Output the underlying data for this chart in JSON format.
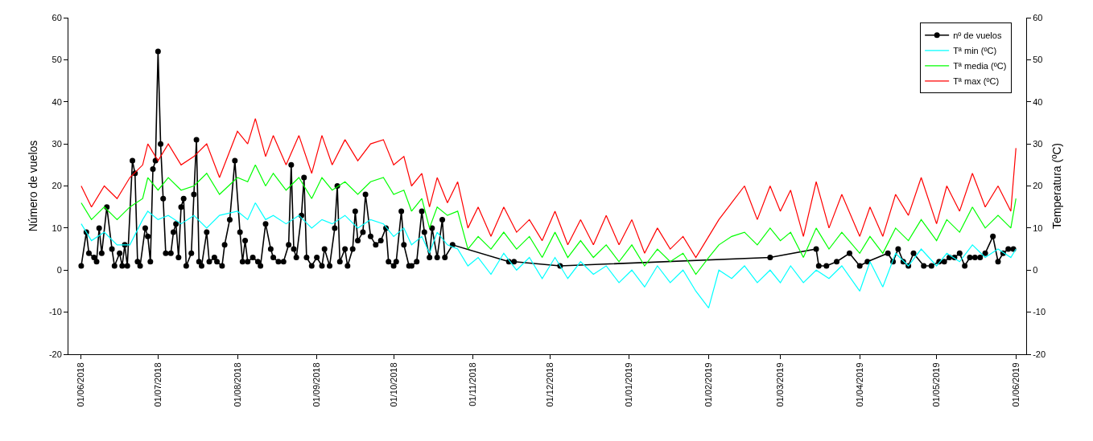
{
  "chart_data": {
    "type": "line",
    "ylabel": "Número de vuelos",
    "y2label": "Temperatura (ºC)",
    "xlim": [
      "2018-05-27",
      "2019-06-05"
    ],
    "xticks": [
      {
        "value": "2018-06-01",
        "label": "01/06/2018"
      },
      {
        "value": "2018-07-01",
        "label": "01/07/2018"
      },
      {
        "value": "2018-08-01",
        "label": "01/08/2018"
      },
      {
        "value": "2018-09-01",
        "label": "01/09/2018"
      },
      {
        "value": "2018-10-01",
        "label": "01/10/2018"
      },
      {
        "value": "2018-11-01",
        "label": "01/11/2018"
      },
      {
        "value": "2018-12-01",
        "label": "01/12/2018"
      },
      {
        "value": "2019-01-01",
        "label": "01/01/2019"
      },
      {
        "value": "2019-02-01",
        "label": "01/02/2019"
      },
      {
        "value": "2019-03-01",
        "label": "01/03/2019"
      },
      {
        "value": "2019-04-01",
        "label": "01/04/2019"
      },
      {
        "value": "2019-05-01",
        "label": "01/05/2019"
      },
      {
        "value": "2019-06-01",
        "label": "01/06/2019"
      }
    ],
    "ylim": [
      -20,
      60
    ],
    "yticks": [
      -20,
      -10,
      0,
      10,
      20,
      30,
      40,
      50,
      60
    ],
    "y2lim": [
      -20,
      60
    ],
    "y2ticks": [
      -20,
      -10,
      0,
      10,
      20,
      30,
      40,
      50,
      60
    ],
    "grid": false,
    "legend": "top right",
    "line_style": "solid",
    "series": [
      {
        "name": "Tª max (ºC)",
        "color": "#ff0000",
        "axis": "y2",
        "marker": "none",
        "x": [
          "2018-06-01",
          "2018-06-05",
          "2018-06-10",
          "2018-06-15",
          "2018-06-20",
          "2018-06-25",
          "2018-06-27",
          "2018-07-01",
          "2018-07-05",
          "2018-07-10",
          "2018-07-15",
          "2018-07-20",
          "2018-07-25",
          "2018-08-01",
          "2018-08-05",
          "2018-08-08",
          "2018-08-12",
          "2018-08-15",
          "2018-08-20",
          "2018-08-25",
          "2018-08-30",
          "2018-09-03",
          "2018-09-07",
          "2018-09-12",
          "2018-09-17",
          "2018-09-22",
          "2018-09-27",
          "2018-10-01",
          "2018-10-05",
          "2018-10-08",
          "2018-10-12",
          "2018-10-15",
          "2018-10-18",
          "2018-10-22",
          "2018-10-26",
          "2018-10-30",
          "2018-11-03",
          "2018-11-08",
          "2018-11-13",
          "2018-11-18",
          "2018-11-23",
          "2018-11-28",
          "2018-12-03",
          "2018-12-08",
          "2018-12-13",
          "2018-12-18",
          "2018-12-23",
          "2018-12-28",
          "2019-01-02",
          "2019-01-07",
          "2019-01-12",
          "2019-01-17",
          "2019-01-22",
          "2019-01-27",
          "2019-02-01",
          "2019-02-05",
          "2019-02-10",
          "2019-02-15",
          "2019-02-20",
          "2019-02-25",
          "2019-03-01",
          "2019-03-05",
          "2019-03-10",
          "2019-03-15",
          "2019-03-20",
          "2019-03-25",
          "2019-04-01",
          "2019-04-05",
          "2019-04-10",
          "2019-04-15",
          "2019-04-20",
          "2019-04-25",
          "2019-05-01",
          "2019-05-05",
          "2019-05-10",
          "2019-05-15",
          "2019-05-20",
          "2019-05-25",
          "2019-05-30",
          "2019-06-01"
        ],
        "values": [
          20,
          15,
          20,
          17,
          22,
          25,
          30,
          26,
          30,
          25,
          27,
          30,
          22,
          33,
          30,
          36,
          27,
          32,
          25,
          32,
          23,
          32,
          25,
          31,
          26,
          30,
          31,
          25,
          27,
          20,
          23,
          15,
          22,
          16,
          21,
          10,
          15,
          8,
          15,
          9,
          12,
          7,
          14,
          6,
          12,
          6,
          13,
          6,
          12,
          4,
          10,
          5,
          8,
          3,
          8,
          12,
          16,
          20,
          12,
          20,
          14,
          19,
          8,
          21,
          10,
          18,
          8,
          15,
          8,
          18,
          13,
          22,
          11,
          20,
          14,
          23,
          15,
          20,
          14,
          29
        ]
      },
      {
        "name": "Tª media (ºC)",
        "color": "#00ff00",
        "axis": "y2",
        "marker": "none",
        "x": [
          "2018-06-01",
          "2018-06-05",
          "2018-06-10",
          "2018-06-15",
          "2018-06-20",
          "2018-06-25",
          "2018-06-27",
          "2018-07-01",
          "2018-07-05",
          "2018-07-10",
          "2018-07-15",
          "2018-07-20",
          "2018-07-25",
          "2018-08-01",
          "2018-08-05",
          "2018-08-08",
          "2018-08-12",
          "2018-08-15",
          "2018-08-20",
          "2018-08-25",
          "2018-08-30",
          "2018-09-03",
          "2018-09-07",
          "2018-09-12",
          "2018-09-17",
          "2018-09-22",
          "2018-09-27",
          "2018-10-01",
          "2018-10-05",
          "2018-10-08",
          "2018-10-12",
          "2018-10-15",
          "2018-10-18",
          "2018-10-22",
          "2018-10-26",
          "2018-10-30",
          "2018-11-03",
          "2018-11-08",
          "2018-11-13",
          "2018-11-18",
          "2018-11-23",
          "2018-11-28",
          "2018-12-03",
          "2018-12-08",
          "2018-12-13",
          "2018-12-18",
          "2018-12-23",
          "2018-12-28",
          "2019-01-02",
          "2019-01-07",
          "2019-01-12",
          "2019-01-17",
          "2019-01-22",
          "2019-01-27",
          "2019-02-01",
          "2019-02-05",
          "2019-02-10",
          "2019-02-15",
          "2019-02-20",
          "2019-02-25",
          "2019-03-01",
          "2019-03-05",
          "2019-03-10",
          "2019-03-15",
          "2019-03-20",
          "2019-03-25",
          "2019-04-01",
          "2019-04-05",
          "2019-04-10",
          "2019-04-15",
          "2019-04-20",
          "2019-04-25",
          "2019-05-01",
          "2019-05-05",
          "2019-05-10",
          "2019-05-15",
          "2019-05-20",
          "2019-05-25",
          "2019-05-30",
          "2019-06-01"
        ],
        "values": [
          16,
          12,
          15,
          12,
          15,
          17,
          22,
          19,
          22,
          19,
          20,
          23,
          18,
          22,
          21,
          25,
          20,
          23,
          19,
          22,
          17,
          22,
          19,
          21,
          18,
          21,
          22,
          18,
          19,
          14,
          17,
          10,
          15,
          13,
          14,
          5,
          8,
          5,
          9,
          5,
          8,
          3,
          9,
          3,
          7,
          3,
          6,
          2,
          6,
          1,
          5,
          2,
          4,
          -1,
          3,
          6,
          8,
          9,
          6,
          10,
          7,
          9,
          3,
          10,
          5,
          9,
          4,
          8,
          4,
          10,
          7,
          12,
          7,
          12,
          9,
          15,
          10,
          13,
          10,
          17
        ]
      },
      {
        "name": "Tª min (ºC)",
        "color": "#00ffff",
        "axis": "y2",
        "marker": "none",
        "x": [
          "2018-06-01",
          "2018-06-05",
          "2018-06-10",
          "2018-06-15",
          "2018-06-20",
          "2018-06-25",
          "2018-06-27",
          "2018-07-01",
          "2018-07-05",
          "2018-07-10",
          "2018-07-15",
          "2018-07-20",
          "2018-07-25",
          "2018-08-01",
          "2018-08-05",
          "2018-08-08",
          "2018-08-12",
          "2018-08-15",
          "2018-08-20",
          "2018-08-25",
          "2018-08-30",
          "2018-09-03",
          "2018-09-07",
          "2018-09-12",
          "2018-09-17",
          "2018-09-22",
          "2018-09-27",
          "2018-10-01",
          "2018-10-05",
          "2018-10-08",
          "2018-10-12",
          "2018-10-15",
          "2018-10-18",
          "2018-10-22",
          "2018-10-26",
          "2018-10-30",
          "2018-11-03",
          "2018-11-08",
          "2018-11-13",
          "2018-11-18",
          "2018-11-23",
          "2018-11-28",
          "2018-12-03",
          "2018-12-08",
          "2018-12-13",
          "2018-12-18",
          "2018-12-23",
          "2018-12-28",
          "2019-01-02",
          "2019-01-07",
          "2019-01-12",
          "2019-01-17",
          "2019-01-22",
          "2019-01-27",
          "2019-02-01",
          "2019-02-05",
          "2019-02-10",
          "2019-02-15",
          "2019-02-20",
          "2019-02-25",
          "2019-03-01",
          "2019-03-05",
          "2019-03-10",
          "2019-03-15",
          "2019-03-20",
          "2019-03-25",
          "2019-04-01",
          "2019-04-05",
          "2019-04-10",
          "2019-04-15",
          "2019-04-20",
          "2019-04-25",
          "2019-05-01",
          "2019-05-05",
          "2019-05-10",
          "2019-05-15",
          "2019-05-20",
          "2019-05-25",
          "2019-05-30",
          "2019-06-01"
        ],
        "values": [
          11,
          7,
          9,
          6,
          6,
          12,
          14,
          12,
          13,
          11,
          13,
          10,
          13,
          14,
          12,
          16,
          12,
          13,
          11,
          13,
          10,
          12,
          11,
          13,
          10,
          12,
          11,
          8,
          10,
          6,
          8,
          4,
          9,
          6,
          5,
          1,
          3,
          -1,
          4,
          0,
          3,
          -2,
          3,
          -2,
          2,
          -1,
          1,
          -3,
          0,
          -4,
          1,
          -3,
          0,
          -5,
          -9,
          0,
          -2,
          1,
          -3,
          0,
          -3,
          1,
          -3,
          0,
          -2,
          1,
          -5,
          2,
          -4,
          4,
          1,
          5,
          1,
          4,
          2,
          6,
          3,
          5,
          3,
          5
        ]
      },
      {
        "name": "nº de vuelos",
        "color": "#000000",
        "axis": "y",
        "marker": "circle",
        "x": [
          "2018-06-01",
          "2018-06-03",
          "2018-06-04",
          "2018-06-06",
          "2018-06-07",
          "2018-06-08",
          "2018-06-09",
          "2018-06-11",
          "2018-06-13",
          "2018-06-14",
          "2018-06-16",
          "2018-06-17",
          "2018-06-18",
          "2018-06-19",
          "2018-06-21",
          "2018-06-22",
          "2018-06-23",
          "2018-06-24",
          "2018-06-26",
          "2018-06-27",
          "2018-06-28",
          "2018-06-29",
          "2018-06-30",
          "2018-07-01",
          "2018-07-02",
          "2018-07-03",
          "2018-07-04",
          "2018-07-06",
          "2018-07-07",
          "2018-07-08",
          "2018-07-09",
          "2018-07-10",
          "2018-07-11",
          "2018-07-12",
          "2018-07-14",
          "2018-07-15",
          "2018-07-16",
          "2018-07-17",
          "2018-07-18",
          "2018-07-20",
          "2018-07-21",
          "2018-07-23",
          "2018-07-24",
          "2018-07-26",
          "2018-07-27",
          "2018-07-29",
          "2018-07-31",
          "2018-08-02",
          "2018-08-03",
          "2018-08-04",
          "2018-08-05",
          "2018-08-07",
          "2018-08-09",
          "2018-08-10",
          "2018-08-12",
          "2018-08-14",
          "2018-08-15",
          "2018-08-17",
          "2018-08-19",
          "2018-08-21",
          "2018-08-22",
          "2018-08-23",
          "2018-08-24",
          "2018-08-26",
          "2018-08-27",
          "2018-08-28",
          "2018-08-30",
          "2018-09-01",
          "2018-09-03",
          "2018-09-04",
          "2018-09-06",
          "2018-09-08",
          "2018-09-09",
          "2018-09-10",
          "2018-09-12",
          "2018-09-13",
          "2018-09-15",
          "2018-09-16",
          "2018-09-17",
          "2018-09-19",
          "2018-09-20",
          "2018-09-22",
          "2018-09-24",
          "2018-09-26",
          "2018-09-28",
          "2018-09-29",
          "2018-10-01",
          "2018-10-02",
          "2018-10-04",
          "2018-10-05",
          "2018-10-07",
          "2018-10-08",
          "2018-10-10",
          "2018-10-12",
          "2018-10-13",
          "2018-10-15",
          "2018-10-16",
          "2018-10-18",
          "2018-10-20",
          "2018-10-21",
          "2018-10-24",
          "2018-11-15",
          "2018-11-17",
          "2018-12-05",
          "2019-02-25",
          "2019-03-15",
          "2019-03-16",
          "2019-03-19",
          "2019-03-23",
          "2019-03-28",
          "2019-04-01",
          "2019-04-04",
          "2019-04-12",
          "2019-04-14",
          "2019-04-16",
          "2019-04-18",
          "2019-04-20",
          "2019-04-22",
          "2019-04-26",
          "2019-04-29",
          "2019-05-02",
          "2019-05-04",
          "2019-05-06",
          "2019-05-08",
          "2019-05-10",
          "2019-05-12",
          "2019-05-14",
          "2019-05-16",
          "2019-05-18",
          "2019-05-20",
          "2019-05-23",
          "2019-05-25",
          "2019-05-27",
          "2019-05-29",
          "2019-05-31"
        ],
        "values": [
          1,
          9,
          4,
          3,
          2,
          10,
          4,
          15,
          5,
          1,
          4,
          1,
          6,
          1,
          26,
          23,
          2,
          1,
          10,
          8,
          2,
          24,
          26,
          52,
          30,
          17,
          4,
          4,
          9,
          11,
          3,
          15,
          17,
          1,
          4,
          18,
          31,
          2,
          1,
          9,
          2,
          3,
          2,
          1,
          6,
          12,
          26,
          9,
          2,
          7,
          2,
          3,
          2,
          1,
          11,
          5,
          3,
          2,
          2,
          6,
          25,
          5,
          3,
          13,
          22,
          3,
          1,
          3,
          1,
          5,
          1,
          10,
          20,
          2,
          5,
          1,
          5,
          14,
          7,
          9,
          18,
          8,
          6,
          7,
          10,
          2,
          1,
          2,
          14,
          6,
          1,
          1,
          2,
          14,
          9,
          3,
          10,
          3,
          12,
          3,
          6,
          2,
          2,
          1,
          3,
          5,
          1,
          1,
          2,
          4,
          1,
          2,
          4,
          2,
          5,
          2,
          1,
          4,
          1,
          1,
          2,
          2,
          3,
          3,
          4,
          1,
          3,
          3,
          3,
          4,
          8,
          2,
          4,
          5,
          5
        ]
      }
    ]
  }
}
